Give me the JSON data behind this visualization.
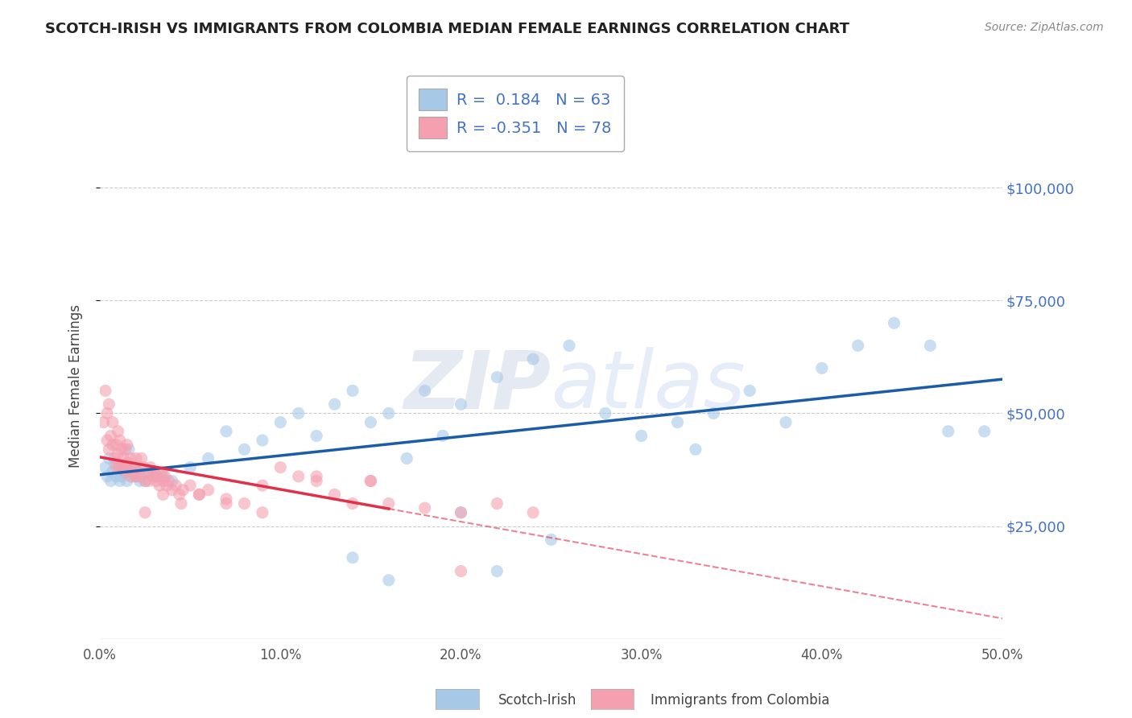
{
  "title": "SCOTCH-IRISH VS IMMIGRANTS FROM COLOMBIA MEDIAN FEMALE EARNINGS CORRELATION CHART",
  "source": "Source: ZipAtlas.com",
  "ylabel": "Median Female Earnings",
  "xlabel_ticks": [
    "0.0%",
    "10.0%",
    "20.0%",
    "30.0%",
    "40.0%",
    "50.0%"
  ],
  "xlabel_vals": [
    0.0,
    10.0,
    20.0,
    30.0,
    40.0,
    50.0
  ],
  "ytick_vals": [
    25000,
    50000,
    75000,
    100000
  ],
  "ytick_labels": [
    "$25,000",
    "$50,000",
    "$75,000",
    "$100,000"
  ],
  "blue_R": 0.184,
  "blue_N": 63,
  "pink_R": -0.351,
  "pink_N": 78,
  "blue_label": "Scotch-Irish",
  "pink_label": "Immigrants from Colombia",
  "blue_color": "#a8c8e8",
  "pink_color": "#f4a0b0",
  "blue_line_color": "#1a5ca8",
  "pink_line_color": "#e0304a",
  "background_color": "#ffffff",
  "grid_color": "#cccccc",
  "title_color": "#222222",
  "axis_label_color": "#444444",
  "ytick_color": "#4472c4",
  "blue_scatter_x": [
    0.3,
    0.4,
    0.5,
    0.6,
    0.7,
    0.8,
    0.9,
    1.0,
    1.1,
    1.2,
    1.3,
    1.4,
    1.5,
    1.6,
    1.7,
    1.8,
    1.9,
    2.0,
    2.1,
    2.2,
    2.3,
    2.5,
    2.7,
    3.0,
    3.5,
    4.0,
    5.0,
    6.0,
    7.0,
    8.0,
    9.0,
    10.0,
    11.0,
    12.0,
    13.0,
    14.0,
    15.0,
    16.0,
    17.0,
    18.0,
    19.0,
    20.0,
    22.0,
    24.0,
    26.0,
    28.0,
    30.0,
    32.0,
    33.0,
    34.0,
    36.0,
    38.0,
    40.0,
    42.0,
    44.0,
    46.0,
    47.0,
    49.0,
    20.0,
    22.0,
    25.0,
    14.0,
    16.0
  ],
  "blue_scatter_y": [
    38000,
    36000,
    40000,
    35000,
    37000,
    39000,
    36000,
    38000,
    35000,
    36000,
    37000,
    38000,
    35000,
    42000,
    38000,
    36000,
    38000,
    36000,
    37000,
    35000,
    36000,
    35000,
    37000,
    36000,
    36000,
    35000,
    38000,
    40000,
    46000,
    42000,
    44000,
    48000,
    50000,
    45000,
    52000,
    55000,
    48000,
    50000,
    40000,
    55000,
    45000,
    52000,
    58000,
    62000,
    65000,
    50000,
    45000,
    48000,
    42000,
    50000,
    55000,
    48000,
    60000,
    65000,
    70000,
    65000,
    46000,
    46000,
    28000,
    15000,
    22000,
    18000,
    13000
  ],
  "pink_scatter_x": [
    0.2,
    0.3,
    0.4,
    0.4,
    0.5,
    0.5,
    0.6,
    0.7,
    0.7,
    0.8,
    0.9,
    0.9,
    1.0,
    1.0,
    1.1,
    1.1,
    1.2,
    1.3,
    1.3,
    1.4,
    1.4,
    1.5,
    1.5,
    1.6,
    1.7,
    1.7,
    1.8,
    1.9,
    2.0,
    2.0,
    2.1,
    2.2,
    2.3,
    2.4,
    2.5,
    2.6,
    2.7,
    2.8,
    2.9,
    3.0,
    3.1,
    3.2,
    3.3,
    3.4,
    3.5,
    3.6,
    3.7,
    3.8,
    4.0,
    4.2,
    4.4,
    4.6,
    5.0,
    5.5,
    6.0,
    7.0,
    8.0,
    9.0,
    10.0,
    11.0,
    12.0,
    13.0,
    14.0,
    15.0,
    16.0,
    18.0,
    20.0,
    22.0,
    24.0,
    20.0,
    15.0,
    12.0,
    9.0,
    7.0,
    5.5,
    4.5,
    3.5,
    2.5
  ],
  "pink_scatter_y": [
    48000,
    55000,
    50000,
    44000,
    42000,
    52000,
    45000,
    43000,
    48000,
    40000,
    43000,
    38000,
    41000,
    46000,
    38000,
    44000,
    42000,
    40000,
    38000,
    37000,
    42000,
    39000,
    43000,
    38000,
    36000,
    40000,
    37000,
    38000,
    36000,
    40000,
    37000,
    36000,
    40000,
    38000,
    35000,
    37000,
    35000,
    38000,
    36000,
    37000,
    35000,
    36000,
    34000,
    37000,
    35000,
    36000,
    34000,
    35000,
    33000,
    34000,
    32000,
    33000,
    34000,
    32000,
    33000,
    31000,
    30000,
    28000,
    38000,
    36000,
    35000,
    32000,
    30000,
    35000,
    30000,
    29000,
    28000,
    30000,
    28000,
    15000,
    35000,
    36000,
    34000,
    30000,
    32000,
    30000,
    32000,
    28000
  ]
}
